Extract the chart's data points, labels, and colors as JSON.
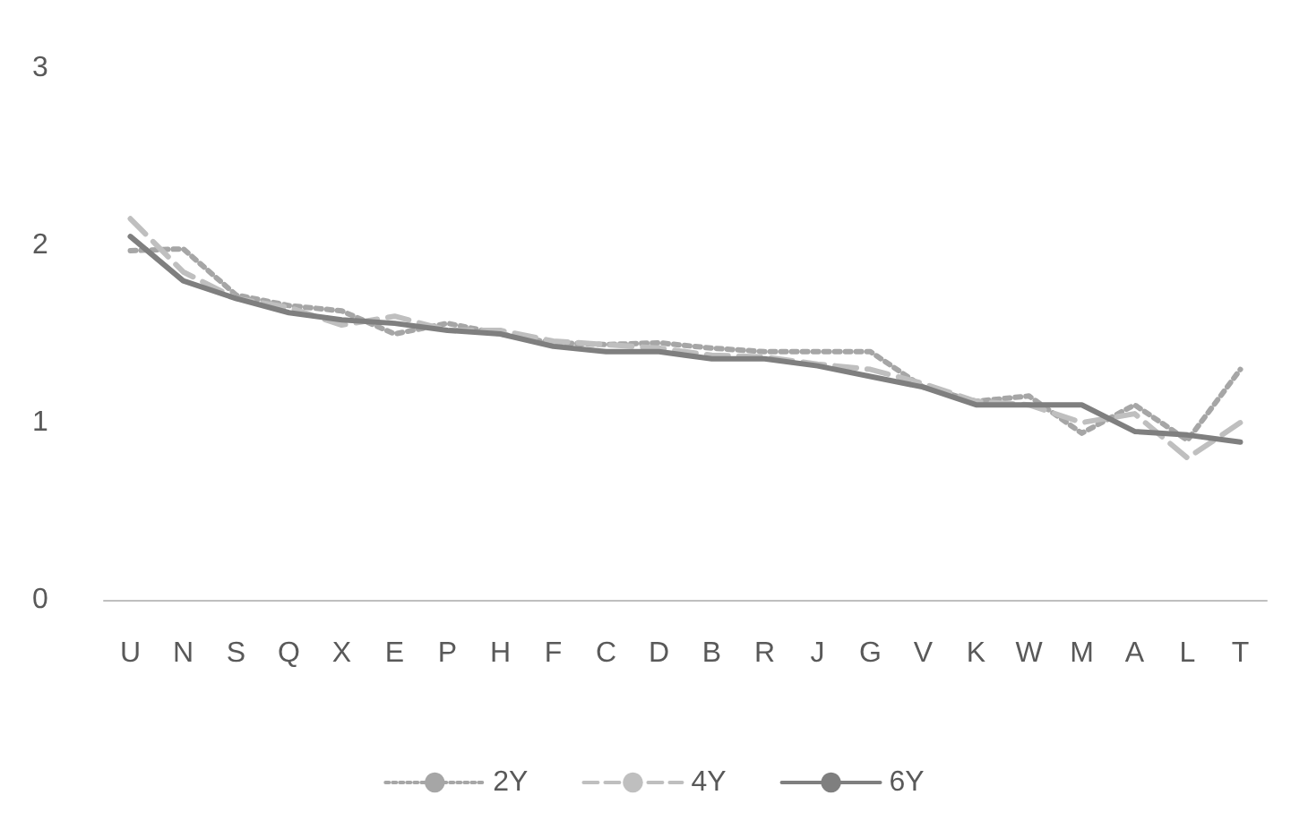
{
  "chart_data": {
    "type": "line",
    "categories": [
      "U",
      "N",
      "S",
      "Q",
      "X",
      "E",
      "P",
      "H",
      "F",
      "C",
      "D",
      "B",
      "R",
      "J",
      "G",
      "V",
      "K",
      "W",
      "M",
      "A",
      "L",
      "T"
    ],
    "series": [
      {
        "name": "2Y",
        "color": "#a6a6a6",
        "line_style": "dotted",
        "values": [
          1.97,
          1.98,
          1.72,
          1.66,
          1.63,
          1.5,
          1.56,
          1.5,
          1.45,
          1.44,
          1.45,
          1.42,
          1.4,
          1.4,
          1.4,
          1.2,
          1.12,
          1.15,
          0.94,
          1.1,
          0.9,
          1.3
        ]
      },
      {
        "name": "4Y",
        "color": "#bfbfbf",
        "line_style": "dashed",
        "values": [
          2.15,
          1.85,
          1.7,
          1.65,
          1.55,
          1.6,
          1.52,
          1.52,
          1.46,
          1.44,
          1.42,
          1.38,
          1.37,
          1.33,
          1.3,
          1.22,
          1.12,
          1.1,
          1.0,
          1.05,
          0.8,
          1.0
        ]
      },
      {
        "name": "6Y",
        "color": "#7f7f7f",
        "line_style": "solid",
        "values": [
          2.05,
          1.8,
          1.7,
          1.62,
          1.58,
          1.56,
          1.52,
          1.5,
          1.43,
          1.4,
          1.4,
          1.36,
          1.36,
          1.32,
          1.26,
          1.2,
          1.1,
          1.1,
          1.1,
          0.95,
          0.93,
          0.89
        ]
      }
    ],
    "ylim": [
      0,
      3
    ],
    "yticks": [
      0,
      1,
      2,
      3
    ],
    "grid": false,
    "legend": "bottom",
    "marker": "none"
  }
}
